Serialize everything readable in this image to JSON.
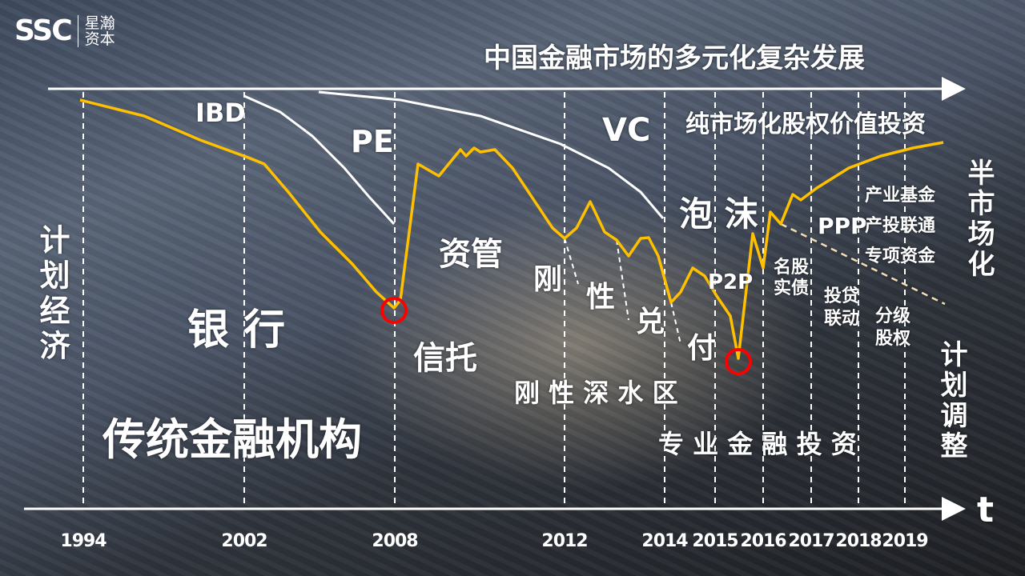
{
  "logo": {
    "mark": "SSC",
    "name": "星瀚资本"
  },
  "title": "中国金融市场的多元化复杂发展",
  "axis": {
    "t_label": "t",
    "years": [
      "1994",
      "2002",
      "2008",
      "2012",
      "2014",
      "2015",
      "2016",
      "2017",
      "2018",
      "2019"
    ]
  },
  "labels": {
    "ibd": "IBD",
    "pe": "PE",
    "vc": "VC",
    "pure_market": "纯市场化股权价值投资",
    "planned_economy": "计划经济",
    "bank": "银 行",
    "traditional": "传统金融机构",
    "asset_mgmt": "资管",
    "trust": "信托",
    "rigid": [
      "刚",
      "性",
      "兑",
      "付"
    ],
    "rigid_zone": "刚 性 深 水 区",
    "bubble": "泡 沫",
    "p2p": "P2P",
    "mingu": "名股\n实债",
    "ppp": "PPP",
    "touDai": "投贷\n联动",
    "fenji": "分级\n股权",
    "industry": [
      "产业基金",
      "产投联通",
      "专项资金"
    ],
    "semi_market": "半市场化",
    "plan_adjust": "计划调整",
    "professional": "专 业 金 融 投 资"
  },
  "colors": {
    "curve": "#ffc000",
    "marker": "#ff0000",
    "axis": "#ffffff",
    "dashed_trend": "#f5deb3"
  }
}
